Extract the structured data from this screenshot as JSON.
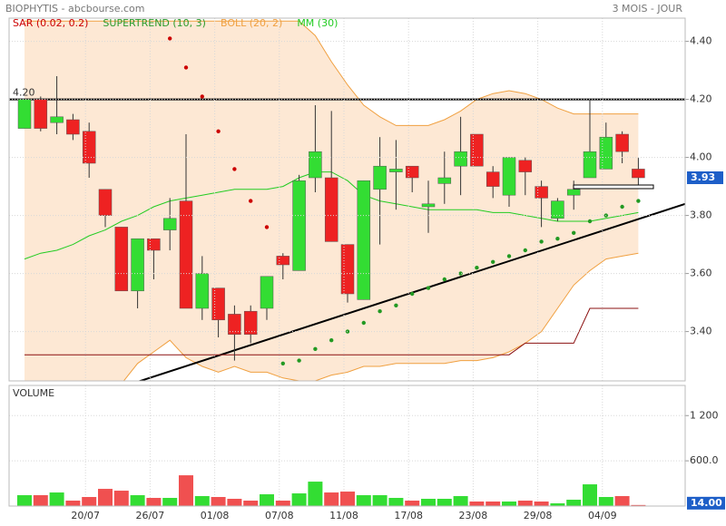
{
  "chart_data": [
    {
      "type": "candlestick",
      "title": "BIOPHYTIS - abcbourse.com",
      "subtitle": "3 MOIS - JOUR",
      "categories": [
        null,
        null,
        null,
        null,
        "20/07",
        null,
        null,
        null,
        "26/07",
        null,
        null,
        null,
        "01/08",
        null,
        null,
        null,
        "07/08",
        null,
        null,
        null,
        "11/08",
        null,
        null,
        null,
        "17/08",
        null,
        null,
        null,
        "23/08",
        null,
        null,
        null,
        "29/08",
        null,
        null,
        null,
        "04/09",
        null,
        null
      ],
      "open": [
        4.1,
        4.2,
        4.12,
        4.13,
        4.09,
        3.89,
        3.76,
        3.54,
        3.72,
        3.75,
        3.85,
        3.48,
        3.55,
        3.46,
        3.47,
        3.48,
        3.66,
        3.61,
        3.93,
        3.93,
        3.7,
        3.51,
        3.89,
        3.95,
        3.97,
        3.83,
        3.91,
        3.97,
        4.08,
        3.95,
        3.87,
        3.99,
        3.9,
        3.79,
        3.87,
        3.93,
        3.96,
        4.08,
        3.96
      ],
      "high": [
        4.2,
        4.21,
        4.28,
        4.15,
        4.12,
        3.89,
        3.76,
        3.72,
        3.72,
        3.86,
        4.08,
        3.66,
        3.55,
        3.49,
        3.49,
        3.59,
        3.67,
        3.94,
        4.18,
        4.16,
        3.7,
        3.92,
        4.07,
        4.06,
        3.97,
        3.92,
        4.02,
        4.14,
        4.08,
        3.97,
        4.0,
        4.0,
        3.92,
        3.86,
        3.92,
        4.2,
        4.12,
        4.09,
        4.0
      ],
      "low": [
        4.1,
        4.09,
        4.08,
        4.06,
        3.93,
        3.76,
        3.54,
        3.48,
        3.58,
        3.68,
        3.48,
        3.44,
        3.38,
        3.3,
        3.36,
        3.44,
        3.58,
        3.61,
        3.88,
        3.71,
        3.5,
        3.51,
        3.7,
        3.82,
        3.88,
        3.74,
        3.84,
        3.87,
        3.97,
        3.86,
        3.83,
        3.87,
        3.76,
        3.78,
        3.82,
        3.93,
        3.96,
        3.98,
        3.9
      ],
      "close": [
        4.2,
        4.1,
        4.14,
        4.08,
        3.98,
        3.8,
        3.54,
        3.72,
        3.68,
        3.79,
        3.48,
        3.6,
        3.44,
        3.39,
        3.39,
        3.59,
        3.63,
        3.92,
        4.02,
        3.71,
        3.53,
        3.92,
        3.97,
        3.96,
        3.93,
        3.84,
        3.93,
        4.02,
        3.97,
        3.9,
        4.0,
        3.95,
        3.86,
        3.85,
        3.89,
        4.02,
        4.07,
        4.02,
        3.93
      ],
      "up_color": "#33dd33",
      "down_color": "#ee2222",
      "series": [
        {
          "name": "SAR (0.02, 0.2)",
          "kind": "dots",
          "color": "#cc0000",
          "values": [
            null,
            null,
            null,
            null,
            null,
            null,
            null,
            null,
            null,
            4.41,
            4.31,
            4.21,
            4.09,
            3.96,
            3.85,
            3.76,
            3.29,
            3.3,
            3.34,
            3.37,
            3.4,
            3.43,
            3.47,
            3.49,
            3.53,
            3.55,
            3.58,
            3.6,
            3.62,
            3.64,
            3.66,
            3.68,
            3.71,
            3.72,
            3.74,
            3.78,
            3.8,
            3.83,
            3.85
          ],
          "point_colors": [
            null,
            null,
            null,
            null,
            null,
            null,
            null,
            null,
            null,
            "#cc0000",
            "#cc0000",
            "#cc0000",
            "#cc0000",
            "#cc0000",
            "#cc0000",
            "#cc0000",
            "#229922",
            "#229922",
            "#229922",
            "#229922",
            "#229922",
            "#229922",
            "#229922",
            "#229922",
            "#229922",
            "#229922",
            "#229922",
            "#229922",
            "#229922",
            "#229922",
            "#229922",
            "#229922",
            "#229922",
            "#229922",
            "#229922",
            "#229922",
            "#229922",
            "#229922",
            "#229922"
          ]
        },
        {
          "name": "SUPERTREND (10, 3)",
          "kind": "line",
          "color": "#8b1010",
          "legend_color": "#2a9a2a",
          "values": [
            3.32,
            3.32,
            3.32,
            3.32,
            3.32,
            3.32,
            3.32,
            3.32,
            3.32,
            3.32,
            3.32,
            3.32,
            3.32,
            3.32,
            3.32,
            3.32,
            3.32,
            3.32,
            3.32,
            3.32,
            3.32,
            3.32,
            3.32,
            3.32,
            3.32,
            3.32,
            3.32,
            3.32,
            3.32,
            3.32,
            3.32,
            3.36,
            3.36,
            3.36,
            3.36,
            3.48,
            3.48,
            3.48,
            3.48
          ]
        },
        {
          "name": "BOLL (20, 2)",
          "kind": "band",
          "color": "#f0a040",
          "fill": "#fde8d4",
          "upper": [
            4.47,
            4.47,
            4.47,
            4.47,
            4.47,
            4.47,
            4.47,
            4.47,
            4.47,
            4.47,
            4.47,
            4.47,
            4.47,
            4.47,
            4.47,
            4.47,
            4.47,
            4.47,
            4.42,
            4.33,
            4.25,
            4.18,
            4.14,
            4.11,
            4.11,
            4.11,
            4.13,
            4.16,
            4.2,
            4.22,
            4.23,
            4.22,
            4.2,
            4.17,
            4.15,
            4.15,
            4.15,
            4.15,
            4.15
          ],
          "lower": [
            3.15,
            3.15,
            3.15,
            3.15,
            3.15,
            3.18,
            3.22,
            3.29,
            3.33,
            3.37,
            3.31,
            3.28,
            3.26,
            3.28,
            3.26,
            3.26,
            3.24,
            3.23,
            3.23,
            3.25,
            3.26,
            3.28,
            3.28,
            3.29,
            3.29,
            3.29,
            3.29,
            3.3,
            3.3,
            3.31,
            3.33,
            3.36,
            3.4,
            3.48,
            3.56,
            3.61,
            3.65,
            3.66,
            3.67
          ]
        },
        {
          "name": "MM (30)",
          "kind": "line",
          "color": "#22cc22",
          "values": [
            3.65,
            3.67,
            3.68,
            3.7,
            3.73,
            3.75,
            3.78,
            3.8,
            3.83,
            3.85,
            3.86,
            3.87,
            3.88,
            3.89,
            3.89,
            3.89,
            3.9,
            3.93,
            3.95,
            3.95,
            3.92,
            3.87,
            3.85,
            3.84,
            3.83,
            3.82,
            3.82,
            3.82,
            3.82,
            3.81,
            3.81,
            3.8,
            3.79,
            3.78,
            3.78,
            3.78,
            3.79,
            3.8,
            3.81
          ]
        }
      ],
      "hline": {
        "value": 4.2,
        "label": "4.20"
      },
      "trendline": {
        "x": [
          6.9,
          40.9
        ],
        "y": [
          3.225,
          3.84
        ]
      },
      "last_price": 3.93,
      "ylim": [
        3.23,
        4.48
      ],
      "yticks": [
        {
          "value": 3.4,
          "label": "3.40"
        },
        {
          "value": 3.6,
          "label": "3.60"
        },
        {
          "value": 3.8,
          "label": "3.80"
        },
        {
          "value": 4.0,
          "label": "4.00"
        },
        {
          "value": 4.2,
          "label": "4.20"
        },
        {
          "value": 4.4,
          "label": "4.40"
        }
      ],
      "grid": true
    },
    {
      "type": "bar",
      "title": "VOLUME",
      "values": [
        144,
        144,
        180,
        72,
        120,
        228,
        204,
        144,
        108,
        108,
        408,
        132,
        120,
        96,
        72,
        156,
        72,
        168,
        324,
        180,
        192,
        144,
        144,
        108,
        72,
        96,
        96,
        132,
        60,
        60,
        60,
        72,
        60,
        36,
        84,
        288,
        120,
        132,
        14
      ],
      "last_value": {
        "value": 14,
        "label": "14.00"
      },
      "ylim": [
        0,
        1600
      ],
      "yticks": [
        {
          "value": 600,
          "label": "600.0"
        },
        {
          "value": 1200,
          "label": "1 200"
        }
      ],
      "grid": true
    }
  ]
}
